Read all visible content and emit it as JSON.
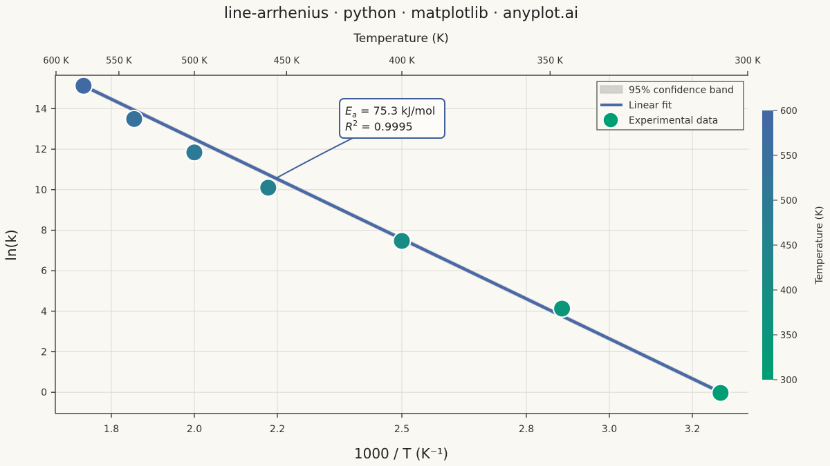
{
  "chart_data": {
    "type": "scatter",
    "title": "line-arrhenius · python · matplotlib · anyplot.ai",
    "xlabel": "1000 / T  (K⁻¹)",
    "ylabel": "ln(k)",
    "top_axis_label": "Temperature (K)",
    "xlim": [
      1.665,
      3.335
    ],
    "ylim": [
      -1.05,
      15.65
    ],
    "x_ticks": [
      1.8,
      2.0,
      2.2,
      2.5,
      2.8,
      3.0,
      3.2
    ],
    "x_tick_labels": [
      "1.8",
      "2.0",
      "2.2",
      "2.5",
      "2.8",
      "3.0",
      "3.2"
    ],
    "y_ticks": [
      0,
      2,
      4,
      6,
      8,
      10,
      12,
      14
    ],
    "y_tick_labels": [
      "0",
      "2",
      "4",
      "6",
      "8",
      "10",
      "12",
      "14"
    ],
    "top_ticks": [
      {
        "temp": 600,
        "label": "600 K"
      },
      {
        "temp": 550,
        "label": "550 K"
      },
      {
        "temp": 500,
        "label": "500 K"
      },
      {
        "temp": 450,
        "label": "450 K"
      },
      {
        "temp": 400,
        "label": "400 K"
      },
      {
        "temp": 350,
        "label": "350 K"
      },
      {
        "temp": 300,
        "label": "300 K"
      }
    ],
    "grid": true,
    "series": [
      {
        "name": "Experimental data",
        "kind": "scatter",
        "points": [
          {
            "x": 1.733,
            "y": 15.13,
            "temp": 577
          },
          {
            "x": 1.855,
            "y": 13.49,
            "temp": 539
          },
          {
            "x": 2.0,
            "y": 11.84,
            "temp": 500
          },
          {
            "x": 2.178,
            "y": 10.1,
            "temp": 459
          },
          {
            "x": 2.5,
            "y": 7.47,
            "temp": 400
          },
          {
            "x": 2.886,
            "y": 4.13,
            "temp": 346
          },
          {
            "x": 3.268,
            "y": -0.03,
            "temp": 306
          }
        ]
      },
      {
        "name": "Linear fit",
        "kind": "line",
        "x": [
          1.733,
          3.268
        ],
        "y": [
          15.13,
          0.0
        ]
      },
      {
        "name": "95% confidence band",
        "kind": "band",
        "x": [
          1.733,
          3.268
        ],
        "y_upper": [
          15.25,
          0.12
        ],
        "y_lower": [
          15.01,
          -0.12
        ]
      }
    ],
    "annotation": {
      "line1_sym": "E",
      "line1_sub": "a",
      "line1_rest": " = 75.3 kJ/mol",
      "line2_sym": "R",
      "line2_sup": "2",
      "line2_rest": " = 0.9995",
      "target_x": 2.178,
      "target_y": 10.1
    },
    "legend": {
      "placement": "top-right",
      "entries": [
        "95% confidence band",
        "Linear fit",
        "Experimental data"
      ]
    },
    "colorbar": {
      "label": "Temperature (K)",
      "min": 300,
      "max": 600,
      "ticks": [
        300,
        350,
        400,
        450,
        500,
        550,
        600
      ],
      "tick_labels": [
        "300",
        "350",
        "400",
        "450",
        "500",
        "550",
        "600"
      ],
      "color_low": "#009e73",
      "color_high": "#4567a6"
    },
    "colors": {
      "fit_line": "#4a6aa6",
      "band": "#cfcfcf",
      "grid": "#dcdad4",
      "axis": "#222222",
      "background": "#faf8f2"
    }
  }
}
